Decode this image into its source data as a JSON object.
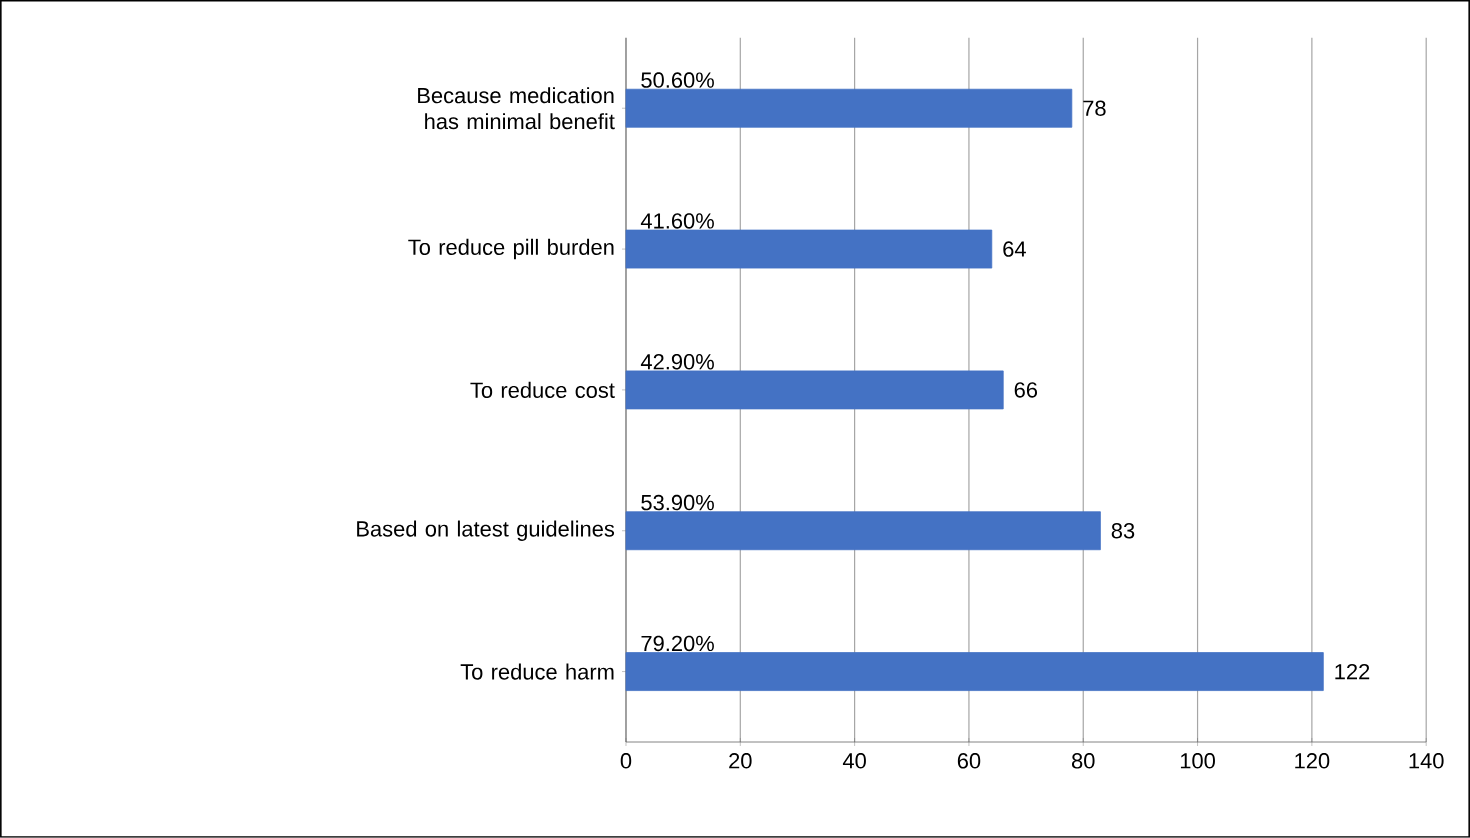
{
  "chart_data": {
    "type": "bar",
    "orientation": "horizontal",
    "categories": [
      "Because medication has minimal benefit",
      "To reduce pill burden",
      "To reduce cost",
      "Based on latest guidelines",
      "To reduce harm"
    ],
    "values": [
      78,
      64,
      66,
      83,
      122
    ],
    "color": "#4472c4",
    "data_labels": true,
    "xlim": [
      0,
      140
    ],
    "xticks": [
      0,
      20,
      40,
      60,
      80,
      100,
      120,
      140
    ],
    "grid": "x",
    "annotations": [
      "50.60%",
      "41.60%",
      "42.90%",
      "53.90%",
      "79.20%"
    ]
  }
}
